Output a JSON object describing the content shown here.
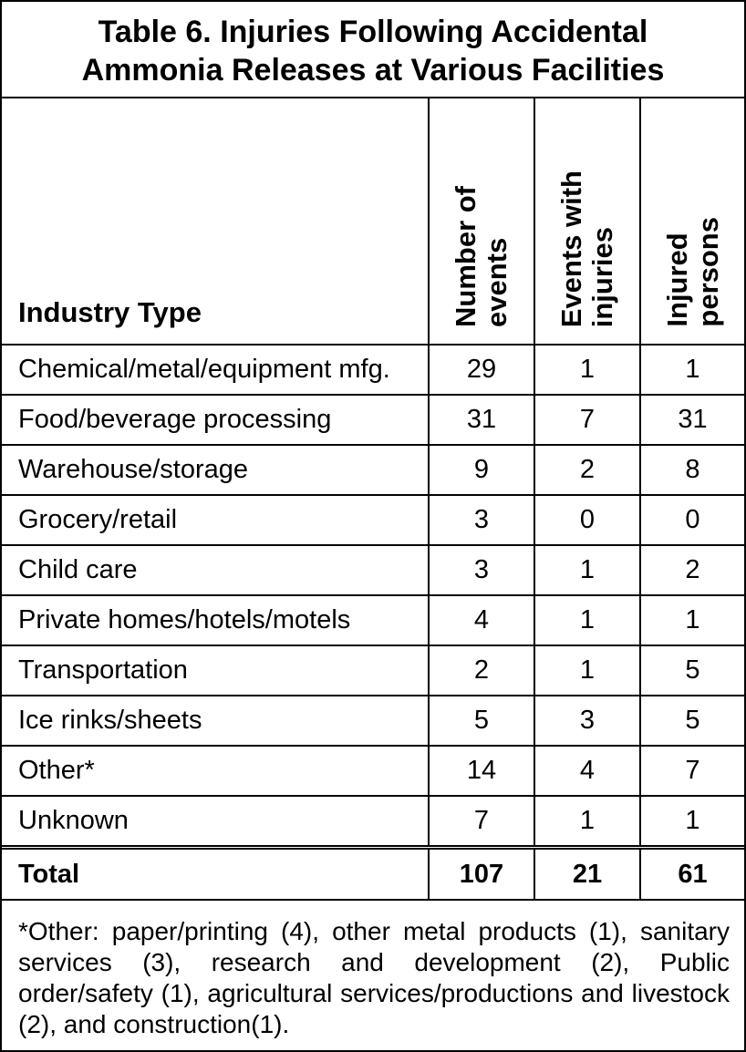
{
  "title_lines": [
    "Table 6.  Injuries Following Accidental",
    "Ammonia Releases at Various Facilities"
  ],
  "columns": {
    "industry": "Industry Type",
    "events": "Number of\nevents",
    "with_injuries": "Events with\ninjuries",
    "injured": "Injured\npersons"
  },
  "rows": [
    {
      "industry": "Chemical/metal/equipment mfg.",
      "events": "29",
      "with_injuries": "1",
      "injured": "1"
    },
    {
      "industry": "Food/beverage processing",
      "events": "31",
      "with_injuries": "7",
      "injured": "31"
    },
    {
      "industry": "Warehouse/storage",
      "events": "9",
      "with_injuries": "2",
      "injured": "8"
    },
    {
      "industry": "Grocery/retail",
      "events": "3",
      "with_injuries": "0",
      "injured": "0"
    },
    {
      "industry": "Child care",
      "events": "3",
      "with_injuries": "1",
      "injured": "2"
    },
    {
      "industry": "Private homes/hotels/motels",
      "events": "4",
      "with_injuries": "1",
      "injured": "1"
    },
    {
      "industry": "Transportation",
      "events": "2",
      "with_injuries": "1",
      "injured": "5"
    },
    {
      "industry": "Ice rinks/sheets",
      "events": "5",
      "with_injuries": "3",
      "injured": "5"
    },
    {
      "industry": "Other*",
      "events": "14",
      "with_injuries": "4",
      "injured": "7"
    },
    {
      "industry": "Unknown",
      "events": "7",
      "with_injuries": "1",
      "injured": "1"
    }
  ],
  "total": {
    "industry": "Total",
    "events": "107",
    "with_injuries": "21",
    "injured": "61"
  },
  "footnote": "*Other: paper/printing (4), other metal products (1), sanitary services (3), research and development (2), Public order/safety (1), agricultural services/productions and livestock (2), and construction(1)."
}
